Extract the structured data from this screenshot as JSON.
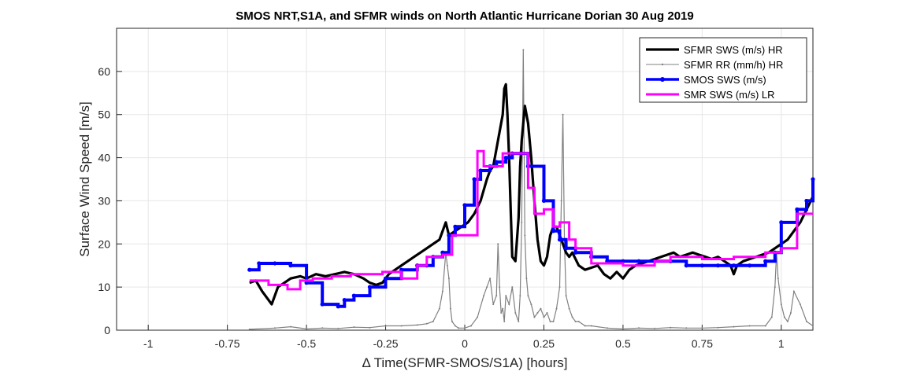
{
  "chart_data": {
    "type": "line",
    "title": "SMOS NRT,S1A, and SFMR winds on North Atlantic Hurricane Dorian 30 Aug 2019",
    "xlabel": "Δ Time(SFMR-SMOS/S1A) [hours]",
    "ylabel": "Surface Wind Speed [m/s]",
    "xlim": [
      -1.1,
      1.1
    ],
    "ylim": [
      0,
      70
    ],
    "xticks": [
      -1,
      -0.75,
      -0.5,
      -0.25,
      0,
      0.25,
      0.5,
      0.75,
      1
    ],
    "xtick_labels": [
      "-1",
      "-0.75",
      "-0.5",
      "-0.25",
      "0",
      "0.25",
      "0.5",
      "0.75",
      "1"
    ],
    "yticks": [
      0,
      10,
      20,
      30,
      40,
      50,
      60
    ],
    "ytick_labels": [
      "0",
      "10",
      "20",
      "30",
      "40",
      "50",
      "60"
    ],
    "grid": true,
    "legend_position": "top-right",
    "series": [
      {
        "name": "SFMR SWS (m/s) HR",
        "color": "#000000",
        "style": "thick-line",
        "x": [
          -0.68,
          -0.66,
          -0.64,
          -0.62,
          -0.61,
          -0.6,
          -0.59,
          -0.57,
          -0.55,
          -0.52,
          -0.5,
          -0.47,
          -0.44,
          -0.41,
          -0.38,
          -0.35,
          -0.32,
          -0.3,
          -0.28,
          -0.26,
          -0.24,
          -0.22,
          -0.2,
          -0.18,
          -0.16,
          -0.14,
          -0.12,
          -0.1,
          -0.08,
          -0.06,
          -0.05,
          -0.03,
          -0.01,
          0.01,
          0.03,
          0.05,
          0.07,
          0.08,
          0.09,
          0.1,
          0.11,
          0.12,
          0.125,
          0.13,
          0.135,
          0.14,
          0.145,
          0.15,
          0.16,
          0.17,
          0.175,
          0.18,
          0.19,
          0.2,
          0.21,
          0.22,
          0.23,
          0.24,
          0.25,
          0.26,
          0.27,
          0.28,
          0.29,
          0.3,
          0.31,
          0.32,
          0.33,
          0.34,
          0.36,
          0.38,
          0.4,
          0.42,
          0.44,
          0.46,
          0.48,
          0.5,
          0.52,
          0.54,
          0.56,
          0.58,
          0.6,
          0.62,
          0.64,
          0.66,
          0.68,
          0.7,
          0.72,
          0.74,
          0.76,
          0.78,
          0.8,
          0.82,
          0.84,
          0.85,
          0.86,
          0.88,
          0.9,
          0.92,
          0.94,
          0.96,
          0.98,
          1.0,
          1.02,
          1.04,
          1.06,
          1.08,
          1.1
        ],
        "y": [
          11,
          11.5,
          9,
          7,
          6,
          8,
          10,
          11,
          12,
          12.5,
          12,
          13,
          12.5,
          13,
          13.5,
          13,
          12,
          11,
          10.5,
          11,
          13,
          14,
          15,
          16,
          17,
          18,
          19,
          20,
          21,
          25,
          22,
          23,
          24,
          25,
          27,
          30,
          35,
          37,
          38,
          42,
          46,
          50,
          56,
          57,
          50,
          40,
          28,
          17,
          16,
          26,
          38,
          44,
          52,
          48,
          40,
          30,
          21,
          16,
          15,
          17,
          22,
          24,
          24,
          22,
          20,
          18,
          17,
          18,
          15,
          14,
          14.5,
          15,
          13,
          12,
          13.5,
          12,
          14,
          15,
          15.5,
          16,
          16.5,
          17,
          17.5,
          18,
          17,
          17.5,
          18,
          17.5,
          17,
          16.5,
          17,
          16,
          15,
          13,
          15,
          16,
          16.5,
          17,
          17.5,
          18,
          19,
          20,
          21,
          23,
          25,
          28,
          31
        ]
      },
      {
        "name": "SFMR RR (mm/h) HR",
        "color": "#808080",
        "style": "thin-dotted-line",
        "x": [
          -0.68,
          -0.6,
          -0.55,
          -0.5,
          -0.45,
          -0.4,
          -0.35,
          -0.3,
          -0.25,
          -0.2,
          -0.15,
          -0.12,
          -0.1,
          -0.08,
          -0.07,
          -0.06,
          -0.055,
          -0.05,
          -0.045,
          -0.04,
          -0.03,
          -0.02,
          0.0,
          0.02,
          0.04,
          0.06,
          0.07,
          0.08,
          0.09,
          0.1,
          0.105,
          0.11,
          0.115,
          0.12,
          0.125,
          0.13,
          0.14,
          0.15,
          0.16,
          0.17,
          0.175,
          0.18,
          0.185,
          0.19,
          0.195,
          0.2,
          0.21,
          0.22,
          0.23,
          0.24,
          0.25,
          0.26,
          0.27,
          0.28,
          0.29,
          0.3,
          0.305,
          0.31,
          0.315,
          0.32,
          0.33,
          0.34,
          0.35,
          0.36,
          0.38,
          0.4,
          0.45,
          0.5,
          0.55,
          0.6,
          0.65,
          0.7,
          0.75,
          0.8,
          0.85,
          0.9,
          0.95,
          0.97,
          0.98,
          0.985,
          0.99,
          1.0,
          1.01,
          1.02,
          1.03,
          1.04,
          1.06,
          1.08,
          1.1
        ],
        "y": [
          0.2,
          0.5,
          0.8,
          0.3,
          0.5,
          0.4,
          0.7,
          0.6,
          1,
          1,
          1.2,
          1.5,
          2,
          5,
          9,
          18,
          15,
          12,
          5,
          2,
          1,
          0.5,
          0.5,
          1,
          3,
          8,
          10,
          12,
          6,
          8,
          20,
          10,
          4,
          5,
          2,
          8,
          6,
          10,
          4,
          2,
          8,
          25,
          65,
          22,
          12,
          8,
          6,
          3,
          4,
          5,
          3,
          4,
          2,
          2,
          5,
          10,
          30,
          50,
          20,
          8,
          5,
          3,
          2,
          2,
          1,
          1,
          0.5,
          0.3,
          0.5,
          0.4,
          0.6,
          0.5,
          0.5,
          0.6,
          0.8,
          1,
          1,
          3,
          10,
          18,
          12,
          6,
          3,
          2,
          4,
          9,
          6,
          2,
          1
        ]
      },
      {
        "name": "SMOS SWS (m/s)",
        "color": "#0000ff",
        "style": "thick-step-markers",
        "x": [
          -0.68,
          -0.65,
          -0.6,
          -0.55,
          -0.5,
          -0.45,
          -0.4,
          -0.38,
          -0.35,
          -0.3,
          -0.25,
          -0.2,
          -0.15,
          -0.12,
          -0.1,
          -0.07,
          -0.05,
          -0.03,
          0,
          0.03,
          0.05,
          0.08,
          0.1,
          0.13,
          0.15,
          0.2,
          0.25,
          0.28,
          0.3,
          0.32,
          0.35,
          0.4,
          0.45,
          0.5,
          0.55,
          0.6,
          0.65,
          0.7,
          0.75,
          0.8,
          0.85,
          0.9,
          0.95,
          0.98,
          1.0,
          1.05,
          1.08,
          1.1
        ],
        "y": [
          14,
          15.5,
          15.5,
          15,
          11,
          6,
          5.5,
          7,
          8,
          10,
          12,
          14,
          15,
          15,
          17,
          18,
          22,
          24,
          29,
          35,
          37,
          38,
          39,
          40,
          41,
          38,
          30,
          23,
          21,
          19,
          18,
          17,
          16,
          16,
          16,
          16,
          16,
          15,
          15,
          15,
          15,
          15,
          16,
          18,
          25,
          28,
          30,
          35
        ]
      },
      {
        "name": "SMR SWS (m/s) LR",
        "color": "#ff00ff",
        "style": "thick-step",
        "x": [
          -0.68,
          -0.62,
          -0.56,
          -0.52,
          -0.48,
          -0.42,
          -0.36,
          -0.3,
          -0.26,
          -0.2,
          -0.15,
          -0.12,
          -0.07,
          -0.04,
          0.0,
          0.04,
          0.06,
          0.1,
          0.12,
          0.15,
          0.2,
          0.22,
          0.25,
          0.28,
          0.3,
          0.33,
          0.35,
          0.4,
          0.45,
          0.5,
          0.55,
          0.6,
          0.65,
          0.7,
          0.75,
          0.8,
          0.85,
          0.9,
          0.95,
          1.0,
          1.05,
          1.1
        ],
        "y": [
          11.5,
          10.5,
          9.5,
          11.5,
          12,
          12.5,
          13,
          13,
          13.5,
          12,
          15,
          17,
          17.5,
          22,
          22,
          41.5,
          38,
          38,
          41,
          41,
          33,
          27,
          28,
          24,
          25,
          21,
          19,
          15.5,
          15.5,
          15,
          15,
          16,
          17,
          17,
          16.5,
          16.5,
          17,
          17,
          18,
          19,
          27,
          27
        ]
      }
    ]
  }
}
